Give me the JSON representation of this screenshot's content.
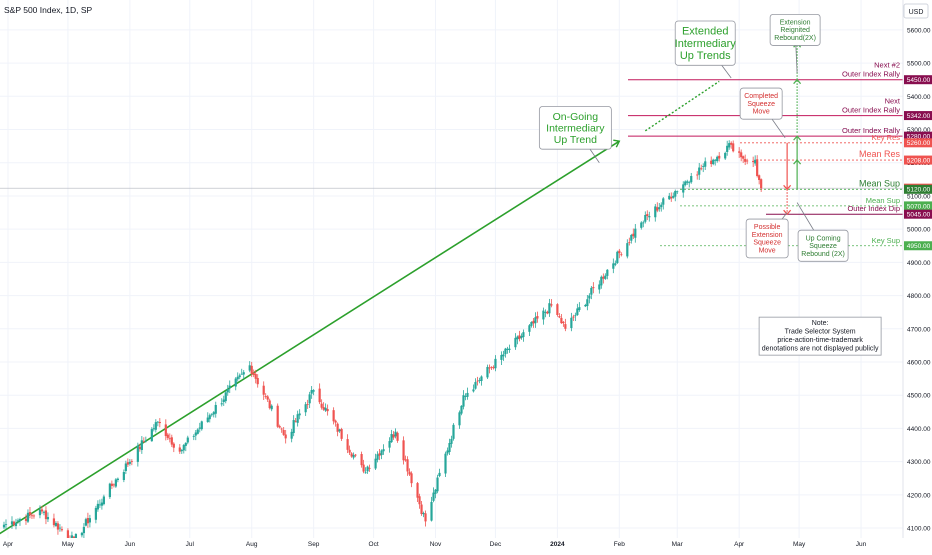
{
  "header": {
    "symbol_title": "S&P 500 Index, 1D, SP",
    "currency": "USD"
  },
  "colors": {
    "up": "#26a69a",
    "down": "#ef5350",
    "trend": "#2ca02c",
    "resistance": "#c2185b",
    "maroon": "#880e4f",
    "support_green": "#4caf50"
  },
  "chart_data": {
    "type": "candlestick",
    "title": "S&P 500 Index, 1D, SP",
    "ylim": [
      4070,
      5690
    ],
    "y_ticks": [
      4100,
      4200,
      4300,
      4400,
      4500,
      4600,
      4700,
      4800,
      4900,
      5000,
      5100,
      5200,
      5300,
      5400,
      5500,
      5600
    ],
    "x_tick_labels": [
      "Apr",
      "May",
      "Jun",
      "Jul",
      "Aug",
      "Sep",
      "Oct",
      "Nov",
      "Dec",
      "2024",
      "Feb",
      "Mar",
      "Apr",
      "May",
      "Jun"
    ],
    "x_range": [
      "2023-03-28",
      "2024-06-22"
    ],
    "price_anchors": [
      [
        "2023-03-30",
        4110
      ],
      [
        "2023-04-18",
        4150
      ],
      [
        "2023-05-04",
        4060
      ],
      [
        "2023-05-19",
        4195
      ],
      [
        "2023-06-15",
        4420
      ],
      [
        "2023-06-26",
        4330
      ],
      [
        "2023-07-31",
        4590
      ],
      [
        "2023-08-18",
        4370
      ],
      [
        "2023-09-01",
        4515
      ],
      [
        "2023-09-26",
        4270
      ],
      [
        "2023-10-12",
        4390
      ],
      [
        "2023-10-27",
        4120
      ],
      [
        "2023-11-15",
        4500
      ],
      [
        "2023-12-29",
        4770
      ],
      [
        "2024-01-05",
        4700
      ],
      [
        "2024-02-12",
        5020
      ],
      [
        "2024-03-08",
        5160
      ],
      [
        "2024-03-28",
        5254
      ],
      [
        "2024-04-05",
        5204
      ],
      [
        "2024-04-08",
        5202
      ],
      [
        "2024-04-09",
        5209
      ],
      [
        "2024-04-10",
        5160
      ],
      [
        "2024-04-12",
        5123
      ]
    ],
    "last_price": 5123.4,
    "trendline_on_going": {
      "from": [
        "2023-03-27",
        4080
      ],
      "to": [
        "2024-02-01",
        5265
      ]
    },
    "trendline_extended": {
      "from": [
        "2024-02-14",
        5296
      ],
      "to": [
        "2024-03-22",
        5445
      ]
    },
    "levels": [
      {
        "price": 5450,
        "kind": "resistance"
      },
      {
        "price": 5342,
        "kind": "resistance"
      },
      {
        "price": 5280,
        "kind": "resistance"
      },
      {
        "price": 5260,
        "kind": "key-resistance"
      },
      {
        "price": 5208,
        "kind": "mean-resistance"
      },
      {
        "price": 5120,
        "kind": "mean-support"
      },
      {
        "price": 5070,
        "kind": "mean-support"
      },
      {
        "price": 5045,
        "kind": "outer-dip"
      },
      {
        "price": 4950,
        "kind": "key-support"
      }
    ],
    "price_tags": [
      {
        "text": "5450.00",
        "price": 5450,
        "color": "#880e4f"
      },
      {
        "text": "5342.00",
        "price": 5342,
        "color": "#880e4f"
      },
      {
        "text": "5280.00",
        "price": 5280,
        "color": "#880e4f"
      },
      {
        "text": "5260.00",
        "price": 5260,
        "color": "#ef5350"
      },
      {
        "text": "5208.00",
        "price": 5208,
        "color": "#ef5350"
      },
      {
        "text": "5123.40",
        "price": 5123.4,
        "color": "#ef5350"
      },
      {
        "text": "5120.00",
        "price": 5120,
        "color": "#2e7d32"
      },
      {
        "text": "5070.00",
        "price": 5070,
        "color": "#4caf50"
      },
      {
        "text": "5045.00",
        "price": 5045,
        "color": "#880e4f"
      },
      {
        "text": "4950.00",
        "price": 4950,
        "color": "#4caf50"
      }
    ],
    "level_labels": [
      {
        "lines": [
          "Next #2",
          "Outer Index Rally"
        ],
        "price": 5450,
        "color": "#880e4f"
      },
      {
        "lines": [
          "Next",
          "Outer Index Rally"
        ],
        "price": 5342,
        "color": "#880e4f"
      },
      {
        "lines": [
          "Outer Index Rally"
        ],
        "price": 5280,
        "color": "#880e4f"
      },
      {
        "lines": [
          "Key Res"
        ],
        "price": 5260,
        "color": "#ef5350"
      },
      {
        "lines": [
          "Mean Res"
        ],
        "price": 5208,
        "color": "#ef5350"
      },
      {
        "lines": [
          "Mean Sup"
        ],
        "price": 5120,
        "color": "#2e7d32"
      },
      {
        "lines": [
          "Mean Sup"
        ],
        "price": 5070,
        "color": "#4caf50"
      },
      {
        "lines": [
          "Outer Index Dip"
        ],
        "price": 5045,
        "color": "#880e4f"
      },
      {
        "lines": [
          "Key Sup"
        ],
        "price": 4950,
        "color": "#4caf50"
      }
    ],
    "callouts": [
      {
        "key": "on-going",
        "lines": [
          "On-Going",
          "Intermediary",
          "Up Trend"
        ],
        "color": "#2ca02c"
      },
      {
        "key": "extended",
        "lines": [
          "Extended",
          "Intermediary",
          "Up Trends"
        ],
        "color": "#2ca02c"
      },
      {
        "key": "completed",
        "lines": [
          "Completed",
          "Squeeze",
          "Move"
        ],
        "color": "#d32f2f"
      },
      {
        "key": "reignited",
        "lines": [
          "Extension",
          "Reignited",
          "Rebound(2X)"
        ],
        "color": "#2e7d32"
      },
      {
        "key": "possible",
        "lines": [
          "Possible",
          "Extension",
          "Squeeze",
          "Move"
        ],
        "color": "#d32f2f"
      },
      {
        "key": "upcoming",
        "lines": [
          "Up Coming",
          "Squeeze",
          "Rebound (2X)"
        ],
        "color": "#2e7d32"
      }
    ],
    "note": [
      "Note:",
      "Trade Selector System",
      "price-action-time-trademark",
      "denotations are not displayed publicly"
    ]
  }
}
